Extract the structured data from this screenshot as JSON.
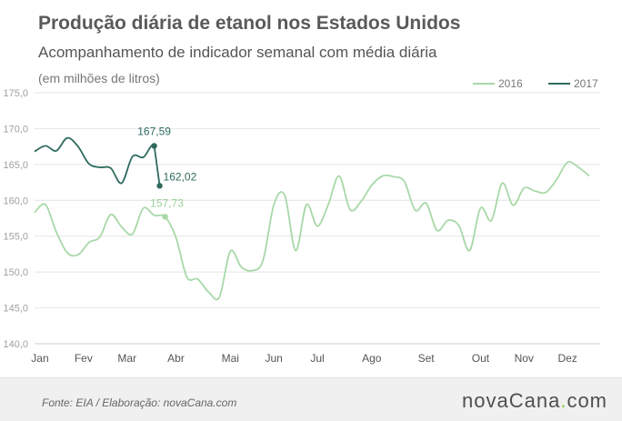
{
  "chart_data": {
    "type": "line",
    "title": "Produção diária de etanol nos Estados Unidos",
    "subtitle": "Acompanhamento de indicador semanal com média diária",
    "ylabel": "(em milhões de litros)",
    "xlabel": "",
    "ylim": [
      140,
      175
    ],
    "yticks": [
      "140,0",
      "145,0",
      "150,0",
      "155,0",
      "160,0",
      "165,0",
      "170,0",
      "175,0"
    ],
    "xlim": [
      0,
      52
    ],
    "months": [
      {
        "label": "Jan",
        "week": 0.5
      },
      {
        "label": "Fev",
        "week": 4.5
      },
      {
        "label": "Mar",
        "week": 8.5
      },
      {
        "label": "Abr",
        "week": 13
      },
      {
        "label": "Mai",
        "week": 18
      },
      {
        "label": "Jun",
        "week": 22
      },
      {
        "label": "Jul",
        "week": 26
      },
      {
        "label": "Ago",
        "week": 31
      },
      {
        "label": "Set",
        "week": 36
      },
      {
        "label": "Out",
        "week": 41
      },
      {
        "label": "Nov",
        "week": 45
      },
      {
        "label": "Dez",
        "week": 49
      }
    ],
    "legend_position": "top-right",
    "grid": "horizontal",
    "series": [
      {
        "name": "2016",
        "color": "#a8d8a8",
        "x": [
          0,
          1,
          2,
          3,
          4,
          5,
          6,
          7,
          8,
          9,
          10,
          11,
          12,
          13,
          14,
          15,
          16,
          17,
          18,
          19,
          20,
          21,
          22,
          23,
          24,
          25,
          26,
          27,
          28,
          29,
          30,
          31,
          32,
          33,
          34,
          35,
          36,
          37,
          38,
          39,
          40,
          41,
          42,
          43,
          44,
          45,
          46,
          47,
          48,
          49,
          50,
          51
        ],
        "values": [
          158.3,
          159.4,
          155.6,
          152.7,
          152.4,
          154.1,
          154.9,
          158.0,
          156.3,
          155.3,
          158.9,
          157.9,
          157.7,
          154.8,
          149.3,
          149.0,
          147.2,
          146.5,
          152.9,
          150.7,
          150.2,
          151.6,
          159.4,
          160.7,
          153.0,
          159.4,
          156.4,
          159.4,
          163.4,
          158.7,
          159.8,
          162.1,
          163.4,
          163.3,
          162.6,
          158.6,
          159.6,
          155.8,
          157.2,
          156.5,
          153.0,
          158.9,
          157.2,
          162.4,
          159.3,
          161.7,
          161.3,
          161.1,
          162.9,
          165.3,
          164.6,
          163.4
        ],
        "end_label": "157,73"
      },
      {
        "name": "2017",
        "color": "#2e6b5e",
        "x": [
          0,
          1,
          2,
          3,
          4,
          5,
          6,
          7,
          8,
          9,
          10,
          11,
          11.5
        ],
        "values": [
          166.8,
          167.6,
          166.9,
          168.7,
          167.5,
          165.1,
          164.6,
          164.5,
          162.4,
          166.1,
          166.0,
          167.59,
          162.02
        ],
        "peak_label": "167,59",
        "end_label": "162,02"
      }
    ]
  },
  "footer": {
    "source": "Fonte:  EIA / Elaboração:  novaCana.com",
    "brand_pre": "nova",
    "brand_mid": "Cana",
    "brand_dot": ".",
    "brand_post": "com"
  }
}
